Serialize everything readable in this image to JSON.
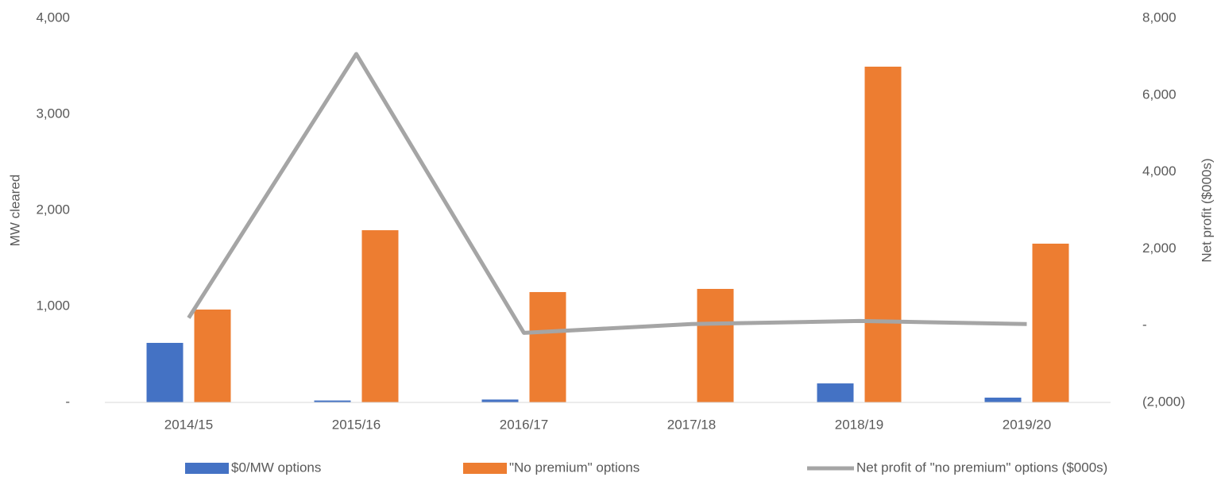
{
  "chart_data": {
    "type": "bar_line",
    "categories": [
      "2014/15",
      "2015/16",
      "2016/17",
      "2017/18",
      "2018/19",
      "2019/20"
    ],
    "series": [
      {
        "name": "$0/MW options",
        "color": "#4472c4",
        "type": "bar",
        "values": [
          620,
          20,
          30,
          0,
          198,
          50
        ]
      },
      {
        "name": "\"No premium\" options",
        "color": "#ed7d31",
        "type": "bar",
        "values": [
          967,
          1793,
          1149,
          1182,
          3496,
          1653
        ]
      },
      {
        "name": "Net profit of \"no premium\" options ($000s)",
        "color": "#a5a5a5",
        "type": "line",
        "axis": "y2",
        "values": [
          200,
          7070,
          -190,
          40,
          120,
          40
        ]
      }
    ],
    "ylabel": "MW cleared",
    "y2label": "Net profit ($000s)",
    "ylim": [
      0,
      4000
    ],
    "yticks": [
      {
        "value": 0,
        "label": "-"
      },
      {
        "value": 1000,
        "label": "1,000"
      },
      {
        "value": 2000,
        "label": "2,000"
      },
      {
        "value": 3000,
        "label": "3,000"
      },
      {
        "value": 4000,
        "label": "4,000"
      }
    ],
    "y2lim": [
      -2000,
      8000
    ],
    "y2ticks": [
      {
        "value": -2000,
        "label": "(2,000)"
      },
      {
        "value": 0,
        "label": "-"
      },
      {
        "value": 2000,
        "label": "2,000"
      },
      {
        "value": 4000,
        "label": "4,000"
      },
      {
        "value": 6000,
        "label": "6,000"
      },
      {
        "value": 8000,
        "label": "8,000"
      }
    ],
    "legend": "bottom"
  }
}
